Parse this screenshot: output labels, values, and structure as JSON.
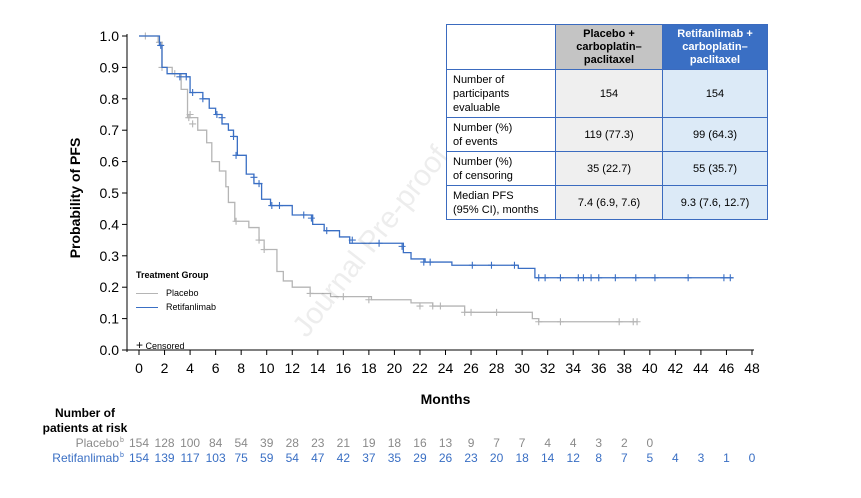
{
  "chart_data": {
    "type": "line",
    "subtype": "kaplan-meier",
    "xlabel": "Months",
    "ylabel": "Probability of PFS",
    "xlim": [
      0,
      48
    ],
    "ylim": [
      0,
      1
    ],
    "x_ticks": [
      0,
      2,
      4,
      6,
      8,
      10,
      12,
      14,
      16,
      18,
      20,
      22,
      24,
      26,
      28,
      30,
      32,
      34,
      36,
      38,
      40,
      42,
      44,
      46,
      48
    ],
    "y_ticks": [
      "0.0",
      "0.1",
      "0.2",
      "0.3",
      "0.4",
      "0.5",
      "0.6",
      "0.7",
      "0.8",
      "0.9",
      "1.0"
    ],
    "grid": false,
    "legend": {
      "title": "Treatment Group",
      "placement": "lower-left",
      "censored_label": "Censored"
    },
    "series": [
      {
        "name": "Placebo",
        "color": "#b5b5b5",
        "steps": [
          [
            0,
            1.0
          ],
          [
            1.5,
            0.98
          ],
          [
            1.8,
            0.9
          ],
          [
            2.6,
            0.88
          ],
          [
            3.3,
            0.83
          ],
          [
            3.8,
            0.74
          ],
          [
            4.6,
            0.7
          ],
          [
            5.3,
            0.66
          ],
          [
            5.7,
            0.6
          ],
          [
            6.3,
            0.57
          ],
          [
            6.8,
            0.52
          ],
          [
            7.0,
            0.47
          ],
          [
            7.5,
            0.41
          ],
          [
            8.6,
            0.39
          ],
          [
            9.4,
            0.35
          ],
          [
            9.8,
            0.32
          ],
          [
            10.8,
            0.25
          ],
          [
            11.3,
            0.22
          ],
          [
            12.0,
            0.2
          ],
          [
            13.4,
            0.18
          ],
          [
            15.0,
            0.17
          ],
          [
            18.2,
            0.16
          ],
          [
            21.3,
            0.15
          ],
          [
            23.0,
            0.14
          ],
          [
            25.5,
            0.12
          ],
          [
            30.8,
            0.1
          ],
          [
            31.3,
            0.09
          ],
          [
            39.0,
            0.09
          ]
        ],
        "censored": [
          [
            0.5,
            1.0
          ],
          [
            1.6,
            0.98
          ],
          [
            1.8,
            0.9
          ],
          [
            2.8,
            0.88
          ],
          [
            3.9,
            0.74
          ],
          [
            4.0,
            0.75
          ],
          [
            4.2,
            0.72
          ],
          [
            7.6,
            0.41
          ],
          [
            9.4,
            0.35
          ],
          [
            9.8,
            0.32
          ],
          [
            13.4,
            0.18
          ],
          [
            16.0,
            0.17
          ],
          [
            18.0,
            0.16
          ],
          [
            22.0,
            0.14
          ],
          [
            23.0,
            0.14
          ],
          [
            23.6,
            0.14
          ],
          [
            25.5,
            0.12
          ],
          [
            26.0,
            0.12
          ],
          [
            28.0,
            0.12
          ],
          [
            31.3,
            0.09
          ],
          [
            33.0,
            0.09
          ],
          [
            37.6,
            0.09
          ],
          [
            38.7,
            0.09
          ],
          [
            39.0,
            0.09
          ]
        ]
      },
      {
        "name": "Retifanlimab",
        "color": "#3a6fc4",
        "steps": [
          [
            0,
            1.0
          ],
          [
            1.6,
            0.97
          ],
          [
            1.8,
            0.9
          ],
          [
            2.2,
            0.88
          ],
          [
            3.7,
            0.87
          ],
          [
            4.0,
            0.82
          ],
          [
            5.0,
            0.8
          ],
          [
            5.5,
            0.77
          ],
          [
            6.0,
            0.75
          ],
          [
            6.5,
            0.72
          ],
          [
            7.0,
            0.7
          ],
          [
            7.4,
            0.68
          ],
          [
            7.7,
            0.62
          ],
          [
            8.4,
            0.56
          ],
          [
            9.0,
            0.53
          ],
          [
            9.6,
            0.48
          ],
          [
            10.3,
            0.46
          ],
          [
            12.0,
            0.43
          ],
          [
            13.6,
            0.4
          ],
          [
            14.5,
            0.38
          ],
          [
            15.7,
            0.36
          ],
          [
            16.5,
            0.34
          ],
          [
            18.8,
            0.34
          ],
          [
            20.7,
            0.31
          ],
          [
            21.3,
            0.29
          ],
          [
            22.4,
            0.28
          ],
          [
            24.5,
            0.27
          ],
          [
            29.7,
            0.26
          ],
          [
            31.0,
            0.23
          ],
          [
            46.5,
            0.23
          ]
        ],
        "censored": [
          [
            1.7,
            0.97
          ],
          [
            3.2,
            0.87
          ],
          [
            3.7,
            0.87
          ],
          [
            4.2,
            0.82
          ],
          [
            5.0,
            0.8
          ],
          [
            6.1,
            0.75
          ],
          [
            6.5,
            0.74
          ],
          [
            7.4,
            0.68
          ],
          [
            7.6,
            0.62
          ],
          [
            9.0,
            0.55
          ],
          [
            9.4,
            0.53
          ],
          [
            10.4,
            0.46
          ],
          [
            11.0,
            0.46
          ],
          [
            12.9,
            0.43
          ],
          [
            13.5,
            0.42
          ],
          [
            14.7,
            0.38
          ],
          [
            16.7,
            0.35
          ],
          [
            18.8,
            0.34
          ],
          [
            20.6,
            0.33
          ],
          [
            22.3,
            0.28
          ],
          [
            22.8,
            0.28
          ],
          [
            26.1,
            0.27
          ],
          [
            27.6,
            0.27
          ],
          [
            29.4,
            0.27
          ],
          [
            31.3,
            0.23
          ],
          [
            31.8,
            0.23
          ],
          [
            33.0,
            0.23
          ],
          [
            34.4,
            0.23
          ],
          [
            34.8,
            0.23
          ],
          [
            35.4,
            0.23
          ],
          [
            36.0,
            0.23
          ],
          [
            37.3,
            0.23
          ],
          [
            38.9,
            0.23
          ],
          [
            40.4,
            0.23
          ],
          [
            43.0,
            0.23
          ],
          [
            45.8,
            0.23
          ],
          [
            46.3,
            0.23
          ]
        ]
      }
    ]
  },
  "summary_table": {
    "col_placebo": [
      "Placebo +",
      "carboplatin–",
      "paclitaxel"
    ],
    "col_retifanlimab": [
      "Retifanlimab +",
      "carboplatin–",
      "paclitaxel"
    ],
    "rows": [
      {
        "label": [
          "Number of",
          "participants",
          "evaluable"
        ],
        "placebo": "154",
        "retifanlimab": "154"
      },
      {
        "label": [
          "Number (%)",
          "of events"
        ],
        "placebo": "119 (77.3)",
        "retifanlimab": "99 (64.3)"
      },
      {
        "label": [
          "Number (%)",
          "of censoring"
        ],
        "placebo": "35 (22.7)",
        "retifanlimab": "55 (35.7)"
      },
      {
        "label": [
          "Median PFS",
          "(95% CI), months"
        ],
        "placebo": "7.4 (6.9, 7.6)",
        "retifanlimab": "9.3 (7.6, 12.7)"
      }
    ]
  },
  "risk_table": {
    "title": [
      "Number of",
      "patients at risk"
    ],
    "placebo_label": "Placebo",
    "retifanlimab_label": "Retifanlimab",
    "superscript": "b",
    "placebo": [
      "154",
      "128",
      "100",
      "84",
      "54",
      "39",
      "28",
      "23",
      "21",
      "19",
      "18",
      "16",
      "13",
      "9",
      "7",
      "7",
      "4",
      "4",
      "3",
      "2",
      "0"
    ],
    "retifanlimab": [
      "154",
      "139",
      "117",
      "103",
      "75",
      "59",
      "54",
      "47",
      "42",
      "37",
      "35",
      "29",
      "26",
      "23",
      "20",
      "18",
      "14",
      "12",
      "8",
      "7",
      "5",
      "4",
      "3",
      "1",
      "0"
    ]
  },
  "watermark": "Journal Pre-proof"
}
